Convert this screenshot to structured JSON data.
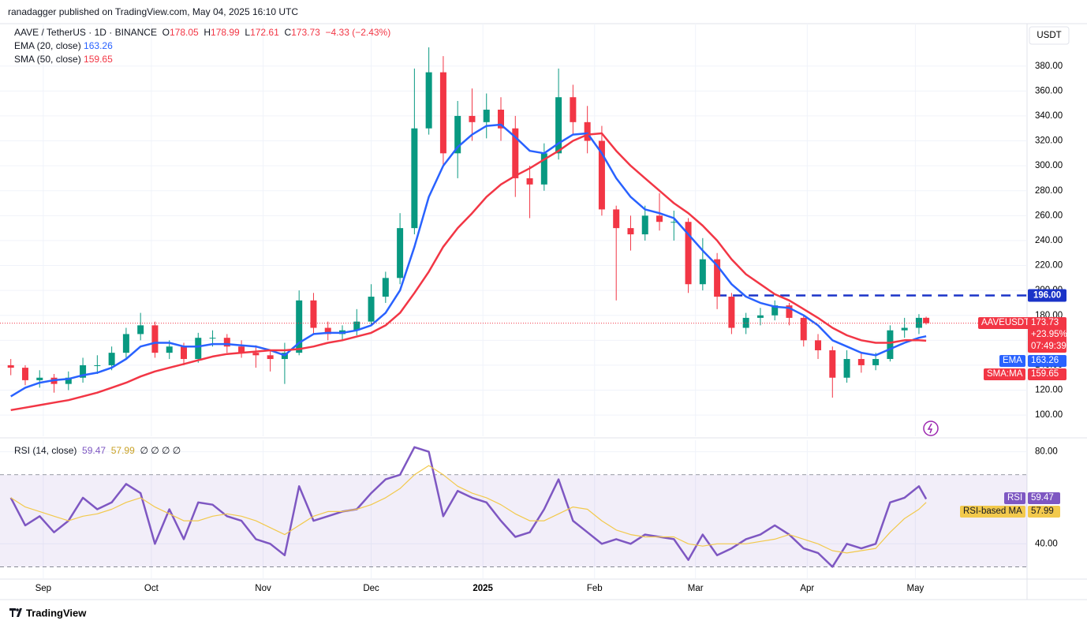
{
  "header": {
    "published": "ranadagger published on TradingView.com, May 04, 2025 16:10 UTC",
    "brand": "TradingView"
  },
  "chart_data": {
    "type": "candlestick",
    "symbol": "AAVE / TetherUS · 1D · BINANCE",
    "ohlc_letters": [
      "O",
      "H",
      "L",
      "C"
    ],
    "change": "−4.33 (−2.43%)",
    "currency": "USDT",
    "ticker": "AAVEUSDT",
    "last_change": "+23.95%",
    "countdown": "07:49:39",
    "up_color": "#089981",
    "down_color": "#f23645",
    "grid": true,
    "x": [
      -9,
      -5,
      -1,
      3,
      7,
      11,
      15,
      19,
      23,
      27,
      31,
      35,
      39,
      43,
      47,
      51,
      55,
      59,
      63,
      67,
      71,
      75,
      79,
      83,
      87,
      91,
      95,
      99,
      103,
      107,
      111,
      115,
      119,
      123,
      127,
      131,
      135,
      139,
      143,
      147,
      151,
      155,
      159,
      163,
      167,
      171,
      175,
      179,
      183,
      187,
      191,
      195,
      199,
      203,
      207,
      211,
      215,
      219,
      223,
      227,
      231,
      235,
      239,
      243,
      245
    ],
    "candles": [
      [
        140,
        145,
        132,
        138
      ],
      [
        138,
        140,
        124,
        128
      ],
      [
        128,
        136,
        122,
        130
      ],
      [
        130,
        133,
        118,
        125
      ],
      [
        125,
        135,
        120,
        130
      ],
      [
        130,
        146,
        126,
        140
      ],
      [
        140,
        148,
        133,
        140
      ],
      [
        140,
        155,
        136,
        150
      ],
      [
        150,
        170,
        146,
        165
      ],
      [
        165,
        182,
        160,
        172
      ],
      [
        172,
        175,
        146,
        150
      ],
      [
        150,
        160,
        145,
        155
      ],
      [
        155,
        158,
        140,
        145
      ],
      [
        145,
        166,
        142,
        162
      ],
      [
        162,
        168,
        155,
        162
      ],
      [
        162,
        165,
        150,
        155
      ],
      [
        155,
        160,
        146,
        150
      ],
      [
        150,
        156,
        138,
        148
      ],
      [
        148,
        152,
        135,
        145
      ],
      [
        145,
        158,
        125,
        150
      ],
      [
        150,
        200,
        148,
        192
      ],
      [
        192,
        198,
        165,
        170
      ],
      [
        170,
        175,
        160,
        165
      ],
      [
        165,
        172,
        160,
        168
      ],
      [
        168,
        185,
        164,
        175
      ],
      [
        175,
        205,
        172,
        195
      ],
      [
        195,
        215,
        190,
        210
      ],
      [
        210,
        262,
        205,
        250
      ],
      [
        250,
        378,
        245,
        330
      ],
      [
        330,
        395,
        325,
        375
      ],
      [
        375,
        388,
        300,
        310
      ],
      [
        310,
        352,
        290,
        340
      ],
      [
        340,
        362,
        320,
        335
      ],
      [
        335,
        358,
        322,
        345
      ],
      [
        345,
        355,
        320,
        330
      ],
      [
        330,
        340,
        275,
        290
      ],
      [
        290,
        300,
        258,
        285
      ],
      [
        285,
        318,
        280,
        310
      ],
      [
        310,
        378,
        305,
        355
      ],
      [
        355,
        365,
        325,
        335
      ],
      [
        335,
        348,
        310,
        320
      ],
      [
        320,
        332,
        260,
        265
      ],
      [
        265,
        268,
        192,
        250
      ],
      [
        250,
        260,
        232,
        245
      ],
      [
        245,
        268,
        240,
        260
      ],
      [
        260,
        278,
        248,
        255
      ],
      [
        255,
        264,
        240,
        255
      ],
      [
        255,
        258,
        198,
        205
      ],
      [
        205,
        242,
        200,
        225
      ],
      [
        225,
        230,
        185,
        195
      ],
      [
        195,
        198,
        165,
        170
      ],
      [
        170,
        182,
        165,
        178
      ],
      [
        178,
        186,
        172,
        180
      ],
      [
        180,
        192,
        176,
        188
      ],
      [
        188,
        190,
        172,
        178
      ],
      [
        178,
        180,
        155,
        160
      ],
      [
        160,
        165,
        145,
        152
      ],
      [
        152,
        155,
        114,
        130
      ],
      [
        130,
        152,
        126,
        145
      ],
      [
        145,
        150,
        134,
        140
      ],
      [
        140,
        150,
        136,
        145
      ],
      [
        145,
        172,
        143,
        168
      ],
      [
        168,
        178,
        162,
        170
      ],
      [
        170,
        181,
        165,
        178
      ],
      [
        178.05,
        178.99,
        172.61,
        173.73
      ]
    ],
    "xlim": [
      -12,
      273
    ],
    "xticks": [
      {
        "value": 0,
        "label": "Sep"
      },
      {
        "value": 30,
        "label": "Oct"
      },
      {
        "value": 61,
        "label": "Nov"
      },
      {
        "value": 91,
        "label": "Dec"
      },
      {
        "value": 122,
        "label": "2025"
      },
      {
        "value": 153,
        "label": "Feb"
      },
      {
        "value": 181,
        "label": "Mar"
      },
      {
        "value": 212,
        "label": "Apr"
      },
      {
        "value": 242,
        "label": "May"
      }
    ],
    "ylim": [
      83,
      414
    ],
    "yticks": [
      {
        "value": 100,
        "label": "100.00"
      },
      {
        "value": 120,
        "label": "120.00"
      },
      {
        "value": 140,
        "label": "140.00"
      },
      {
        "value": 160,
        "label": "160.00"
      },
      {
        "value": 180,
        "label": "180.00"
      },
      {
        "value": 200,
        "label": "200.00"
      },
      {
        "value": 220,
        "label": "220.00"
      },
      {
        "value": 240,
        "label": "240.00"
      },
      {
        "value": 260,
        "label": "260.00"
      },
      {
        "value": 280,
        "label": "280.00"
      },
      {
        "value": 300,
        "label": "300.00"
      },
      {
        "value": 320,
        "label": "320.00"
      },
      {
        "value": 340,
        "label": "340.00"
      },
      {
        "value": 360,
        "label": "360.00"
      },
      {
        "value": 380,
        "label": "380.00"
      }
    ],
    "series": [
      {
        "name": "EMA (20, close)",
        "tag": "EMA",
        "color": "#2962ff",
        "values": [
          115,
          122,
          126,
          128,
          129,
          132,
          134,
          138,
          145,
          155,
          158,
          158,
          155,
          155,
          157,
          157,
          156,
          155,
          152,
          148,
          158,
          165,
          166,
          166,
          168,
          172,
          182,
          200,
          235,
          275,
          300,
          315,
          325,
          332,
          333,
          323,
          312,
          310,
          318,
          325,
          326,
          310,
          290,
          275,
          265,
          262,
          258,
          245,
          232,
          220,
          205,
          195,
          190,
          187,
          186,
          180,
          172,
          160,
          155,
          150,
          148,
          153,
          158,
          162,
          163.26
        ]
      },
      {
        "name": "SMA (50, close)",
        "tag": "SMA:MA",
        "color": "#f23645",
        "values": [
          104,
          106,
          108,
          110,
          112,
          115,
          118,
          122,
          126,
          131,
          135,
          138,
          141,
          144,
          147,
          149,
          150,
          151,
          152,
          152,
          153,
          155,
          158,
          160,
          163,
          166,
          172,
          182,
          198,
          215,
          235,
          250,
          262,
          275,
          285,
          292,
          298,
          305,
          312,
          320,
          325,
          326,
          312,
          300,
          290,
          280,
          270,
          262,
          252,
          240,
          225,
          213,
          205,
          197,
          192,
          185,
          178,
          170,
          164,
          160,
          158,
          158,
          160,
          160,
          159.65
        ]
      }
    ],
    "levels": [
      {
        "value": 196,
        "label": "196.00",
        "x_start": 187,
        "color": "#1a33c8"
      }
    ],
    "rsi": {
      "title": "RSI (14, close)",
      "extra": "∅ ∅ ∅ ∅",
      "ylim": [
        25,
        85
      ],
      "yticks": [
        {
          "value": 40,
          "label": "40.00"
        },
        {
          "value": 80,
          "label": "80.00"
        }
      ],
      "band": [
        30,
        70
      ],
      "series": [
        {
          "name": "RSI",
          "color": "#7e57c2",
          "values": [
            60,
            48,
            52,
            45,
            50,
            60,
            55,
            58,
            66,
            62,
            40,
            55,
            42,
            58,
            57,
            52,
            50,
            42,
            40,
            35,
            65,
            50,
            52,
            54,
            55,
            62,
            68,
            70,
            82,
            80,
            52,
            63,
            60,
            58,
            50,
            43,
            45,
            55,
            68,
            50,
            45,
            40,
            42,
            40,
            44,
            43,
            42,
            33,
            44,
            35,
            38,
            42,
            44,
            48,
            44,
            38,
            36,
            30,
            40,
            38,
            40,
            58,
            60,
            65,
            59.47
          ]
        },
        {
          "name": "RSI-based MA",
          "color": "#f2c94c",
          "values": [
            60,
            56,
            54,
            52,
            50,
            52,
            53,
            55,
            58,
            60,
            56,
            53,
            50,
            50,
            52,
            53,
            52,
            50,
            47,
            44,
            48,
            52,
            54,
            54,
            55,
            57,
            60,
            64,
            70,
            74,
            70,
            65,
            62,
            60,
            57,
            53,
            50,
            50,
            53,
            56,
            55,
            50,
            46,
            44,
            43,
            43,
            43,
            40,
            39,
            40,
            40,
            40,
            41,
            42,
            44,
            42,
            40,
            37,
            36,
            37,
            38,
            45,
            51,
            55,
            57.99
          ]
        }
      ]
    }
  }
}
